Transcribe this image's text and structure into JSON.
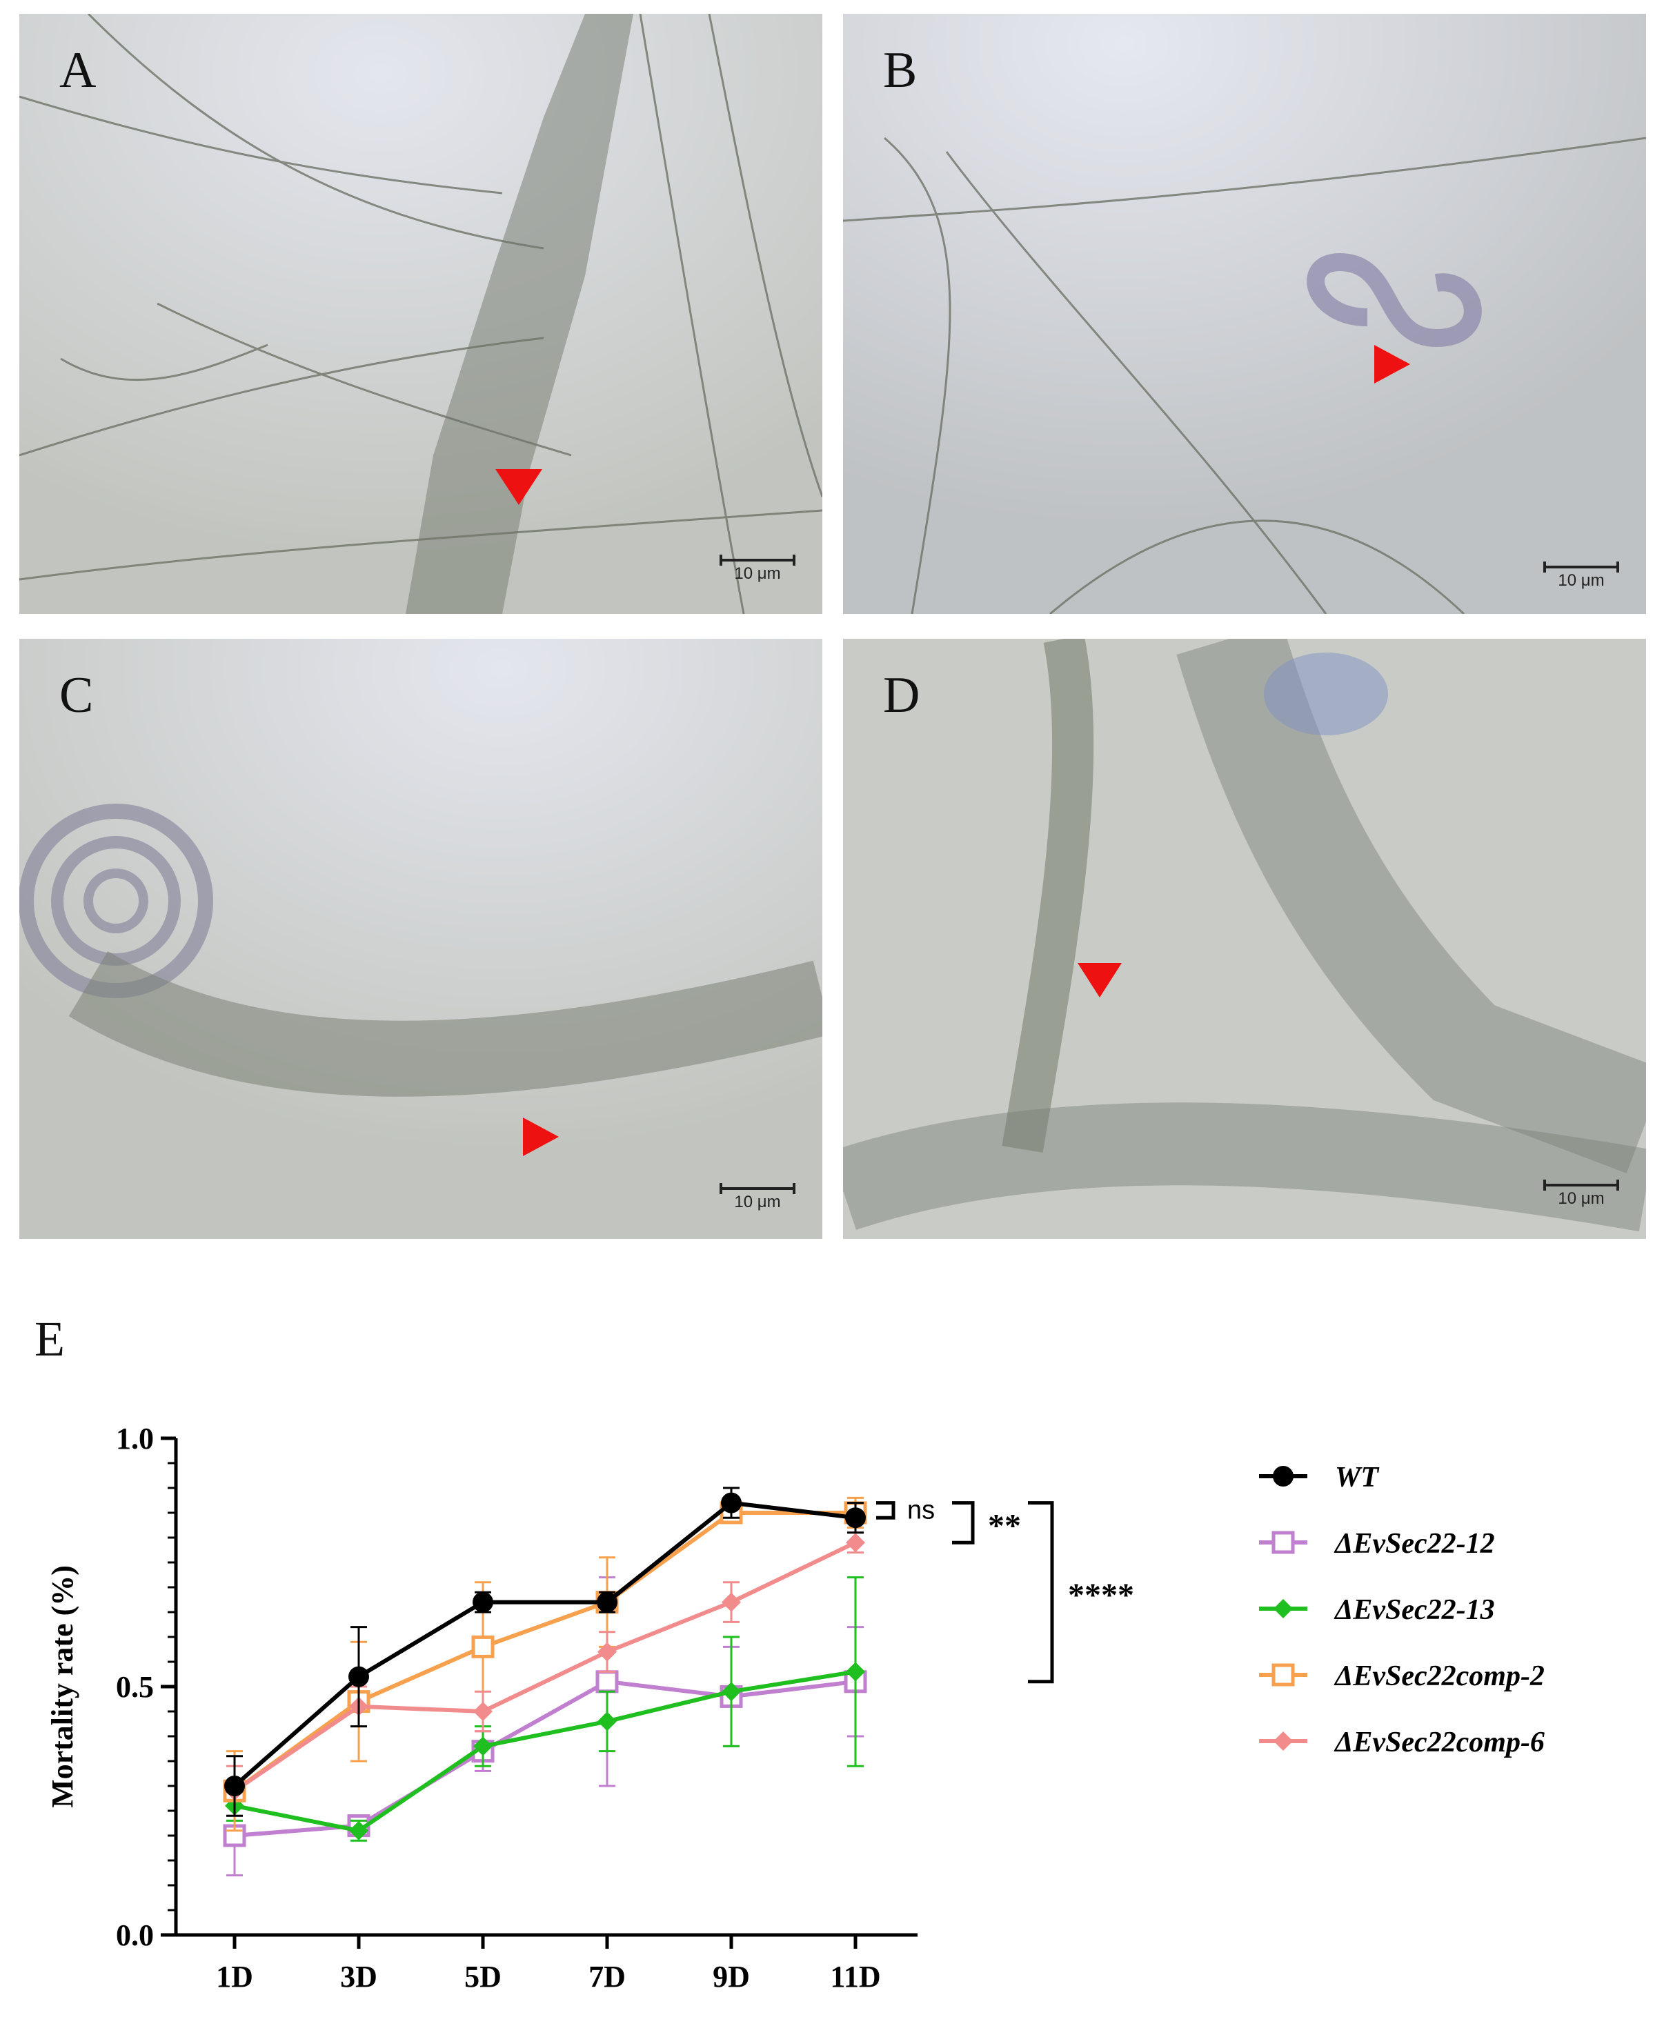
{
  "panels": [
    {
      "id": "A",
      "label": "A",
      "scale": "10 μm"
    },
    {
      "id": "B",
      "label": "B",
      "scale": "10 μm"
    },
    {
      "id": "C",
      "label": "C",
      "scale": "10 μm"
    },
    {
      "id": "D",
      "label": "D",
      "scale": "10 μm"
    }
  ],
  "panel_e_label": "E",
  "chart_data": {
    "type": "line",
    "ylabel": "Mortality rate (%)",
    "categories": [
      "1D",
      "3D",
      "5D",
      "7D",
      "9D",
      "11D"
    ],
    "ylim": [
      0.0,
      1.0
    ],
    "yticks": [
      "0.0",
      "0.5",
      "1.0"
    ],
    "series": [
      {
        "name": "WT",
        "color": "#000000",
        "marker": "circle-filled",
        "values": [
          0.3,
          0.52,
          0.67,
          0.67,
          0.87,
          0.84
        ],
        "errors": [
          0.06,
          0.1,
          0.02,
          0.02,
          0.03,
          0.03
        ]
      },
      {
        "name": "ΔEvSec22-12",
        "color": "#c17fcf",
        "marker": "square-open",
        "values": [
          0.2,
          0.22,
          0.37,
          0.51,
          0.48,
          0.51
        ],
        "errors": [
          0.08,
          0.02,
          0.04,
          0.21,
          0.1,
          0.11
        ]
      },
      {
        "name": "ΔEvSec22-13",
        "color": "#1fbf1f",
        "marker": "diamond",
        "values": [
          0.26,
          0.21,
          0.38,
          0.43,
          0.49,
          0.53
        ],
        "errors": [
          0.03,
          0.02,
          0.04,
          0.06,
          0.11,
          0.19
        ]
      },
      {
        "name": "ΔEvSec22comp-2",
        "color": "#f7a04e",
        "marker": "square-open",
        "values": [
          0.29,
          0.47,
          0.58,
          0.67,
          0.85,
          0.85
        ],
        "errors": [
          0.08,
          0.12,
          0.13,
          0.09,
          0.02,
          0.03
        ]
      },
      {
        "name": "ΔEvSec22comp-6",
        "color": "#f28b8b",
        "marker": "diamond",
        "values": [
          0.29,
          0.46,
          0.45,
          0.57,
          0.67,
          0.79
        ],
        "errors": [
          0.05,
          0.04,
          0.04,
          0.04,
          0.04,
          0.02
        ]
      }
    ],
    "annotations": [
      {
        "text": "ns",
        "between": [
          "WT",
          "ΔEvSec22comp-2"
        ]
      },
      {
        "text": "**",
        "between": [
          "WT",
          "ΔEvSec22comp-6"
        ]
      },
      {
        "text": "****",
        "between": [
          "WT",
          "ΔEvSec22-12/13"
        ]
      }
    ]
  }
}
